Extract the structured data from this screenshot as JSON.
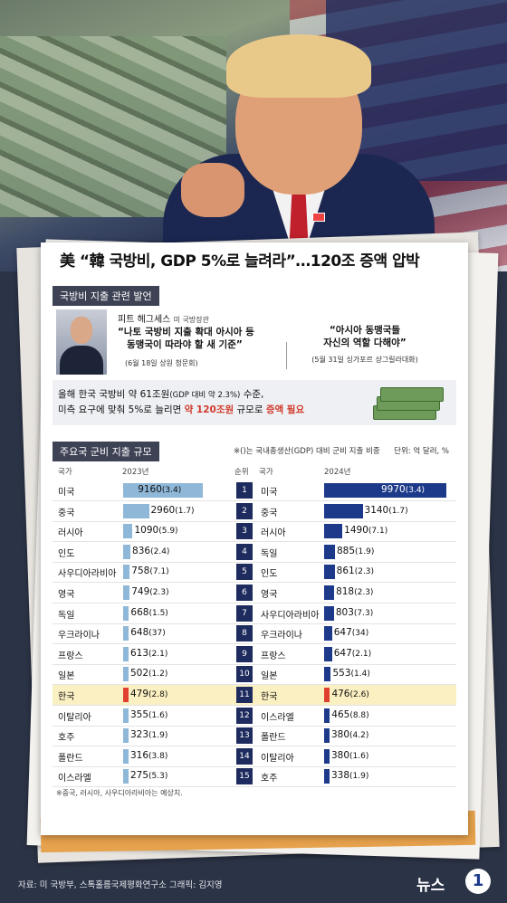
{
  "headline": "美 “韓 국방비, GDP 5%로 늘려라”…120조 증액 압박",
  "quote_section": {
    "tag": "국방비 지출 관련 발언",
    "speaker_name": "피트 헤그세스",
    "speaker_title": "미 국방장관",
    "quote1_line1": "“나토 국방비 지출 확대 아시아 등",
    "quote1_line2": "동맹국이 따라야 할 새 기준”",
    "quote1_date": "(6월 18일 상원 청문회)",
    "quote2_line1": "“아시아 동맹국들",
    "quote2_line2": "자신의 역할 다해야”",
    "quote2_date": "(5월 31일 싱가포르 샹그릴라대화)"
  },
  "info": {
    "line1_a": "올해 한국 국방비 약 61조원",
    "line1_b": "(GDP 대비 약 2.3%)",
    "line1_c": " 수준,",
    "line2_a": "미측 요구에 맞춰 5%로 늘리면 ",
    "line2_b": "약 120조원",
    "line2_c": " 규모로 ",
    "line2_d": "증액 필요"
  },
  "chart": {
    "tag": "주요국 군비 지출 규모",
    "note": "※()는 국내총생산(GDP) 대비 군비 지출 비중",
    "unit": "단위: 억 달러, %",
    "hdr_country_left": "국가",
    "hdr_year_left": "2023년",
    "hdr_rank": "순위",
    "hdr_country_right": "국가",
    "hdr_year_right": "2024년"
  },
  "chart_data": {
    "type": "bar",
    "title": "주요국 군비 지출 규모",
    "unit": "억 달러, %",
    "series": [
      {
        "name": "2023년",
        "rows": [
          {
            "country": "미국",
            "value": 9160,
            "gdp": "3.4"
          },
          {
            "country": "중국",
            "value": 2960,
            "gdp": "1.7"
          },
          {
            "country": "러시아",
            "value": 1090,
            "gdp": "5.9"
          },
          {
            "country": "인도",
            "value": 836,
            "gdp": "2.4"
          },
          {
            "country": "사우디아라비아",
            "value": 758,
            "gdp": "7.1"
          },
          {
            "country": "영국",
            "value": 749,
            "gdp": "2.3"
          },
          {
            "country": "독일",
            "value": 668,
            "gdp": "1.5"
          },
          {
            "country": "우크라이나",
            "value": 648,
            "gdp": "37"
          },
          {
            "country": "프랑스",
            "value": 613,
            "gdp": "2.1"
          },
          {
            "country": "일본",
            "value": 502,
            "gdp": "1.2"
          },
          {
            "country": "한국",
            "value": 479,
            "gdp": "2.8"
          },
          {
            "country": "이탈리아",
            "value": 355,
            "gdp": "1.6"
          },
          {
            "country": "호주",
            "value": 323,
            "gdp": "1.9"
          },
          {
            "country": "폴란드",
            "value": 316,
            "gdp": "3.8"
          },
          {
            "country": "이스라엘",
            "value": 275,
            "gdp": "5.3"
          }
        ]
      },
      {
        "name": "2024년",
        "rows": [
          {
            "country": "미국",
            "value": 9970,
            "gdp": "3.4"
          },
          {
            "country": "중국",
            "value": 3140,
            "gdp": "1.7"
          },
          {
            "country": "러시아",
            "value": 1490,
            "gdp": "7.1"
          },
          {
            "country": "독일",
            "value": 885,
            "gdp": "1.9"
          },
          {
            "country": "인도",
            "value": 861,
            "gdp": "2.3"
          },
          {
            "country": "영국",
            "value": 818,
            "gdp": "2.3"
          },
          {
            "country": "사우디아라비아",
            "value": 803,
            "gdp": "7.3"
          },
          {
            "country": "우크라이나",
            "value": 647,
            "gdp": "34"
          },
          {
            "country": "프랑스",
            "value": 647,
            "gdp": "2.1"
          },
          {
            "country": "일본",
            "value": 553,
            "gdp": "1.4"
          },
          {
            "country": "한국",
            "value": 476,
            "gdp": "2.6"
          },
          {
            "country": "이스라엘",
            "value": 465,
            "gdp": "8.8"
          },
          {
            "country": "폴란드",
            "value": 380,
            "gdp": "4.2"
          },
          {
            "country": "이탈리아",
            "value": 380,
            "gdp": "1.6"
          },
          {
            "country": "호주",
            "value": 338,
            "gdp": "1.9"
          }
        ]
      }
    ],
    "ranks": [
      1,
      2,
      3,
      4,
      5,
      6,
      7,
      8,
      9,
      10,
      11,
      12,
      13,
      14,
      15
    ],
    "highlight_country": "한국",
    "colors": {
      "bar_2023": "#8fb7d8",
      "bar_2024": "#1d3a8a",
      "highlight": "#e0412f",
      "highlight_row": "#fbf0c2"
    }
  },
  "footnote": "※중국, 러시아, 사우디아라비아는 예상치.",
  "source": "자료: 미 국방부, 스톡홀름국제평화연구소   그래픽: 김지영",
  "logo": {
    "text": "뉴스",
    "mark": "1"
  }
}
